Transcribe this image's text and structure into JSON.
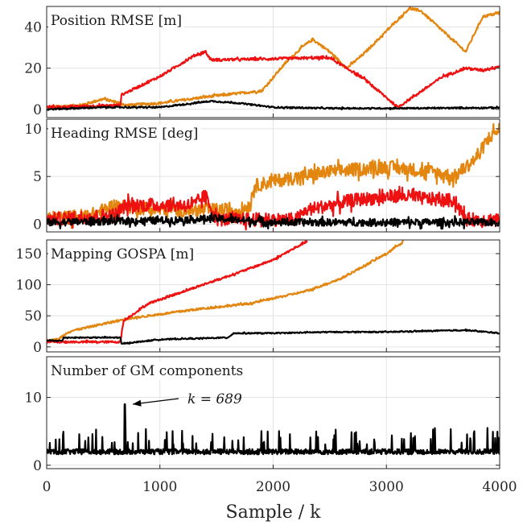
{
  "chart_data": {
    "type": "line",
    "xlabel": "Sample / k",
    "xlim": [
      0,
      4000
    ],
    "xticks": [
      "0",
      "1000",
      "2000",
      "3000",
      "4000"
    ],
    "grid": true,
    "colors": {
      "red": "#ee1111",
      "orange": "#e38610",
      "black": "#000000"
    },
    "panels": [
      {
        "label": "Position RMSE [m]",
        "ylim": [
          -4,
          50
        ],
        "yticks": [
          {
            "v": 0,
            "t": "0"
          },
          {
            "v": 20,
            "t": "20"
          },
          {
            "v": 40,
            "t": "40"
          }
        ],
        "noise": 0.6,
        "series": [
          {
            "color": "orange",
            "points": [
              [
                0,
                1
              ],
              [
                300,
                2
              ],
              [
                500,
                5
              ],
              [
                650,
                3
              ],
              [
                700,
                2
              ],
              [
                1000,
                3
              ],
              [
                1400,
                6
              ],
              [
                1900,
                9
              ],
              [
                2100,
                22
              ],
              [
                2250,
                30
              ],
              [
                2350,
                34
              ],
              [
                2500,
                28
              ],
              [
                2650,
                20
              ],
              [
                2800,
                27
              ],
              [
                3000,
                38
              ],
              [
                3200,
                49
              ],
              [
                3300,
                48
              ],
              [
                3600,
                33
              ],
              [
                3700,
                28
              ],
              [
                3850,
                45
              ],
              [
                4000,
                47
              ]
            ]
          },
          {
            "color": "red",
            "points": [
              [
                0,
                1
              ],
              [
                650,
                2
              ],
              [
                660,
                7
              ],
              [
                1000,
                16
              ],
              [
                1300,
                26
              ],
              [
                1400,
                28
              ],
              [
                1450,
                24
              ],
              [
                2400,
                25
              ],
              [
                2500,
                25
              ],
              [
                2800,
                15
              ],
              [
                3100,
                1
              ],
              [
                3500,
                16
              ],
              [
                3700,
                20
              ],
              [
                3850,
                19
              ],
              [
                4000,
                21
              ]
            ]
          },
          {
            "color": "black",
            "points": [
              [
                0,
                0
              ],
              [
                500,
                1
              ],
              [
                1000,
                1
              ],
              [
                1450,
                4
              ],
              [
                1700,
                3
              ],
              [
                2000,
                1
              ],
              [
                2500,
                0.5
              ],
              [
                3000,
                0.5
              ],
              [
                3500,
                0.6
              ],
              [
                4000,
                0.8
              ]
            ]
          }
        ]
      },
      {
        "label": "Heading RMSE [deg]",
        "ylim": [
          -0.8,
          11
        ],
        "yticks": [
          {
            "v": 0,
            "t": "0"
          },
          {
            "v": 5,
            "t": "5"
          },
          {
            "v": 10,
            "t": "10"
          }
        ],
        "noise": 0.7,
        "series": [
          {
            "color": "orange",
            "points": [
              [
                0,
                0.5
              ],
              [
                400,
                1
              ],
              [
                600,
                2
              ],
              [
                1000,
                1.5
              ],
              [
                1400,
                1.5
              ],
              [
                1700,
                1.5
              ],
              [
                1800,
                2
              ],
              [
                1830,
                4
              ],
              [
                2000,
                4.5
              ],
              [
                2500,
                5.5
              ],
              [
                3000,
                6
              ],
              [
                3400,
                5.5
              ],
              [
                3600,
                5
              ],
              [
                3800,
                7
              ],
              [
                3900,
                9
              ],
              [
                4000,
                10
              ]
            ]
          },
          {
            "color": "red",
            "points": [
              [
                0,
                0.5
              ],
              [
                600,
                1
              ],
              [
                700,
                2
              ],
              [
                1300,
                2
              ],
              [
                1400,
                3
              ],
              [
                1500,
                0.5
              ],
              [
                2200,
                0.5
              ],
              [
                2300,
                1.5
              ],
              [
                2700,
                2.5
              ],
              [
                3100,
                3
              ],
              [
                3500,
                2.5
              ],
              [
                3600,
                2.5
              ],
              [
                3700,
                0.5
              ],
              [
                4000,
                0.5
              ]
            ]
          },
          {
            "color": "black",
            "points": [
              [
                0,
                0.2
              ],
              [
                1000,
                0.4
              ],
              [
                1500,
                0.6
              ],
              [
                2000,
                0.2
              ],
              [
                3000,
                0.2
              ],
              [
                4000,
                0.2
              ]
            ]
          }
        ]
      },
      {
        "label": "Mapping GOSPA [m]",
        "ylim": [
          -8,
          172
        ],
        "yticks": [
          {
            "v": 0,
            "t": "0"
          },
          {
            "v": 50,
            "t": "50"
          },
          {
            "v": 100,
            "t": "100"
          },
          {
            "v": 150,
            "t": "150"
          }
        ],
        "noise": 1.6,
        "series": [
          {
            "color": "orange",
            "points": [
              [
                0,
                10
              ],
              [
                100,
                12
              ],
              [
                200,
                25
              ],
              [
                700,
                45
              ],
              [
                1300,
                60
              ],
              [
                1800,
                70
              ],
              [
                2300,
                90
              ],
              [
                2600,
                110
              ],
              [
                3000,
                150
              ],
              [
                3150,
                170
              ]
            ]
          },
          {
            "color": "red",
            "points": [
              [
                0,
                8
              ],
              [
                650,
                8
              ],
              [
                680,
                42
              ],
              [
                900,
                70
              ],
              [
                1300,
                95
              ],
              [
                1700,
                120
              ],
              [
                2000,
                140
              ],
              [
                2300,
                170
              ]
            ]
          },
          {
            "color": "black",
            "points": [
              [
                0,
                10
              ],
              [
                140,
                10
              ],
              [
                150,
                15
              ],
              [
                650,
                15
              ],
              [
                660,
                5
              ],
              [
                1000,
                12
              ],
              [
                1600,
                15
              ],
              [
                1650,
                22
              ],
              [
                2000,
                22
              ],
              [
                2500,
                24
              ],
              [
                3000,
                24
              ],
              [
                3700,
                27
              ],
              [
                4000,
                22
              ]
            ]
          }
        ]
      },
      {
        "label": "Number of GM components",
        "ylim": [
          -0.5,
          16
        ],
        "yticks": [
          {
            "v": 0,
            "t": "0"
          },
          {
            "v": 10,
            "t": "10"
          }
        ],
        "annotation": {
          "text": "k = 689",
          "x": 689,
          "y": 9
        }
      }
    ]
  }
}
